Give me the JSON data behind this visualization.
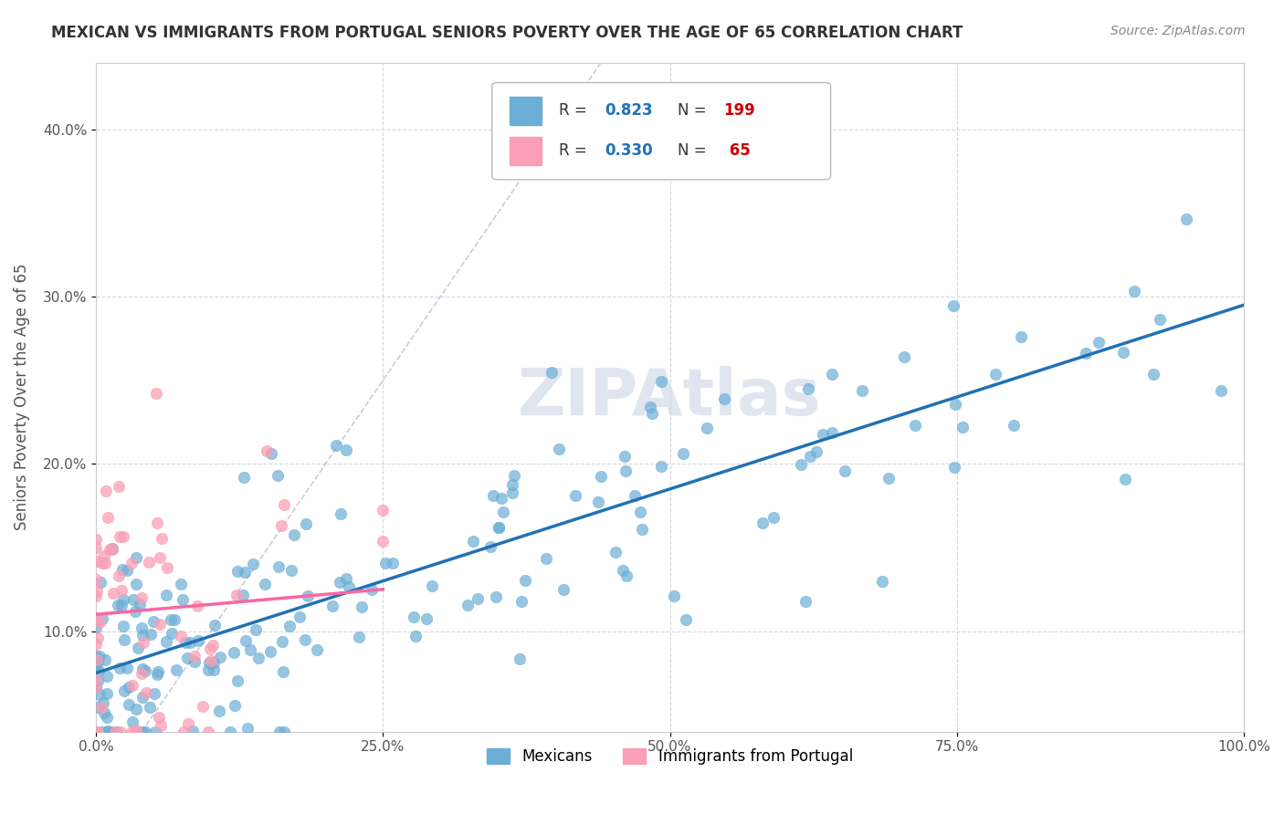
{
  "title": "MEXICAN VS IMMIGRANTS FROM PORTUGAL SENIORS POVERTY OVER THE AGE OF 65 CORRELATION CHART",
  "source": "Source: ZipAtlas.com",
  "ylabel": "Seniors Poverty Over the Age of 65",
  "xlim": [
    0,
    1.0
  ],
  "ylim": [
    0.04,
    0.44
  ],
  "xticks": [
    0.0,
    0.25,
    0.5,
    0.75,
    1.0
  ],
  "xticklabels": [
    "0.0%",
    "25.0%",
    "50.0%",
    "75.0%",
    "100.0%"
  ],
  "ytick_positions": [
    0.1,
    0.2,
    0.3,
    0.4
  ],
  "yticklabels": [
    "10.0%",
    "20.0%",
    "30.0%",
    "40.0%"
  ],
  "blue_color": "#6baed6",
  "pink_color": "#fa9fb5",
  "blue_line_color": "#2171b5",
  "pink_line_color": "#f768a1",
  "r_value_color": "#2171b5",
  "n_value_color": "#cc0000",
  "watermark": "ZIPAtlas",
  "watermark_color": "#d0d8e8",
  "background_color": "#ffffff",
  "grid_color": "#c8d0dc",
  "seed_blue": 42,
  "seed_pink": 123,
  "n_blue": 199,
  "n_pink": 65,
  "blue_slope": 0.22,
  "blue_intercept": 0.075,
  "pink_slope": 0.06,
  "pink_intercept": 0.11
}
